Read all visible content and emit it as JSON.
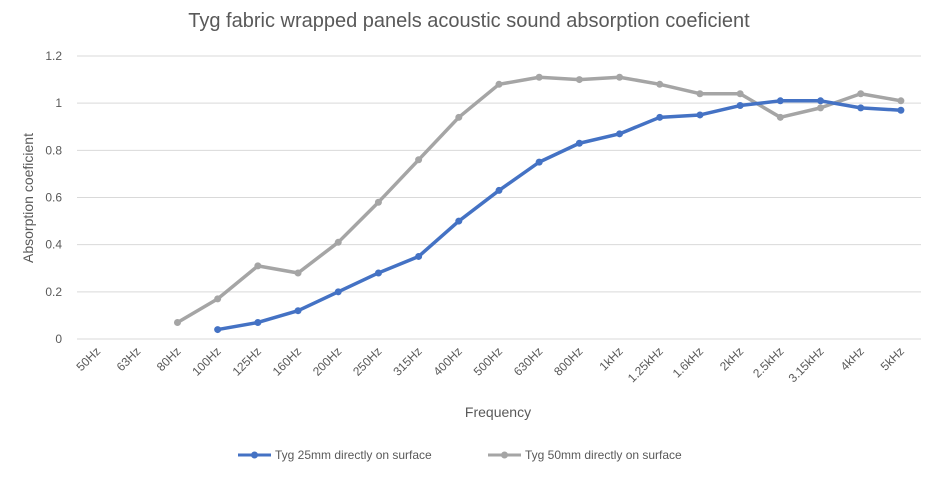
{
  "chart_data": {
    "type": "line",
    "title": "Tyg fabric wrapped panels acoustic sound absorption coeficient",
    "xlabel": "Frequency",
    "ylabel": "Absorption coeficient",
    "ylim": [
      0,
      1.2
    ],
    "yticks": [
      "0",
      "0.2",
      "0.4",
      "0.6",
      "0.8",
      "1",
      "1.2"
    ],
    "grid": true,
    "legend_position": "bottom",
    "categories": [
      "50Hz",
      "63Hz",
      "80Hz",
      "100Hz",
      "125Hz",
      "160Hz",
      "200Hz",
      "250Hz",
      "315Hz",
      "400Hz",
      "500Hz",
      "630Hz",
      "800Hz",
      "1kHz",
      "1.25kHz",
      "1.6kHz",
      "2kHz",
      "2.5kHz",
      "3.15kHz",
      "4kHz",
      "5kHz"
    ],
    "series": [
      {
        "name": "Tyg 25mm directly on surface",
        "color": "#4472c4",
        "values": [
          null,
          null,
          null,
          0.04,
          0.07,
          0.12,
          0.2,
          0.28,
          0.35,
          0.5,
          0.63,
          0.75,
          0.83,
          0.87,
          0.94,
          0.95,
          0.99,
          1.01,
          1.01,
          0.98,
          0.97
        ]
      },
      {
        "name": "Tyg 50mm directly on surface",
        "color": "#a5a5a5",
        "values": [
          null,
          null,
          0.07,
          0.17,
          0.31,
          0.28,
          0.41,
          0.58,
          0.76,
          0.94,
          1.08,
          1.11,
          1.1,
          1.11,
          1.08,
          1.04,
          1.04,
          0.94,
          0.98,
          1.04,
          1.01
        ]
      }
    ]
  }
}
